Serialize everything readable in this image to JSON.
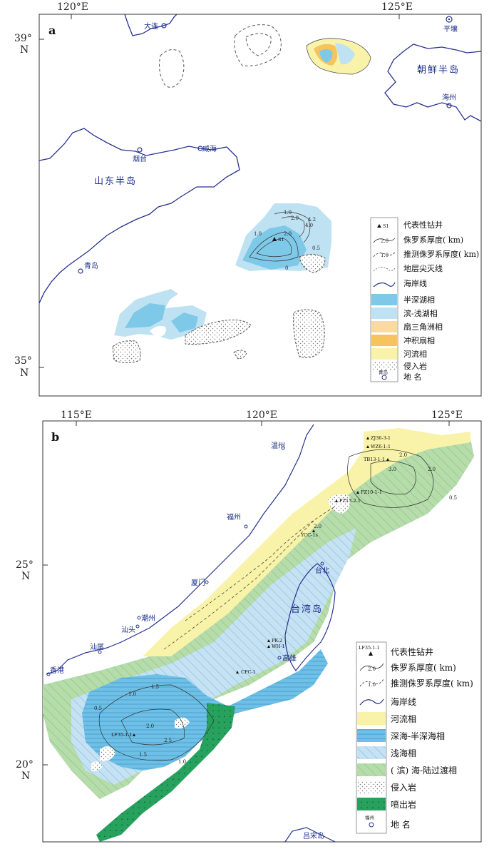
{
  "panel_a": {
    "tag": "a",
    "lon_labels": [
      "120°E",
      "125°E"
    ],
    "lat_labels": [
      {
        "deg": "39°",
        "hem": "N"
      },
      {
        "deg": "35°",
        "hem": "N"
      }
    ],
    "places": [
      "大连",
      "平壤",
      "烟台",
      "威海",
      "青岛",
      "海州"
    ],
    "regions": [
      "山东半岛",
      "朝鲜半岛"
    ],
    "well": "S1",
    "legend": {
      "well": "代表性钻井",
      "thickness": "侏罗系厚度( km)",
      "inferred_thickness": "推测侏罗系厚度( km)",
      "pinchout": "地层尖灭线",
      "coastline": "海岸线",
      "semi_deep_lake": "半深湖相",
      "shore_shallow_lake": "滨-浅湖相",
      "fan_delta": "扇三角洲相",
      "alluvial_fan": "冲积扇相",
      "fluvial": "河流相",
      "intrusive": "侵入岩",
      "place_name": "地  名",
      "well_sample": "S1",
      "thickness_sample": "2.0",
      "inferred_sample": "1.0",
      "place_sample": "青岛"
    },
    "colors": {
      "semi_deep_lake": "#7ec9e8",
      "shore_shallow_lake": "#bfe2f3",
      "fan_delta": "#fbd9a4",
      "alluvial_fan": "#f7c35e",
      "fluvial": "#f8f3a8",
      "coast": "#27328f"
    }
  },
  "panel_b": {
    "tag": "b",
    "lon_labels": [
      "115°E",
      "120°E",
      "125°E"
    ],
    "lat_labels": [
      {
        "deg": "25°",
        "hem": "N"
      },
      {
        "deg": "20°",
        "hem": "N"
      }
    ],
    "places": [
      "温州",
      "福州",
      "厦门",
      "潮州",
      "汕头",
      "汕尾",
      "香港",
      "台北",
      "高雄",
      "吕宋岛"
    ],
    "regions": [
      "台湾岛"
    ],
    "wells": [
      "ZJ36-3-1",
      "WZ6-1-1",
      "TB13-1-1",
      "FZ10-1-1",
      "FZ13-2-1",
      "YCC-1s",
      "PK-2",
      "WH-1",
      "CFC-1",
      "LF35-1-1"
    ],
    "legend": {
      "well": "代表性钻井",
      "thickness": "侏罗系厚度( km)",
      "inferred_thickness": "推测侏罗系厚度( km)",
      "coastline": "海岸线",
      "fluvial": "河流相",
      "deep_semi_deep_sea": "深海-半深海相",
      "shallow_sea": "浅海相",
      "transition": "( 滨) 海-陆过渡相",
      "intrusive": "侵入岩",
      "extrusive": "喷出岩",
      "place_name": "地  名",
      "well_sample": "LF35-1-1",
      "thickness_sample": "2.0",
      "inferred_sample": "1.0",
      "place_sample": "福州"
    },
    "colors": {
      "fluvial": "#f8f3a8",
      "deep_semi_deep_sea": "#6fc0e6",
      "shallow_sea": "#c4e2f3",
      "transition": "#b5dcaa",
      "extrusive": "#26a25e",
      "coast": "#27328f"
    }
  }
}
